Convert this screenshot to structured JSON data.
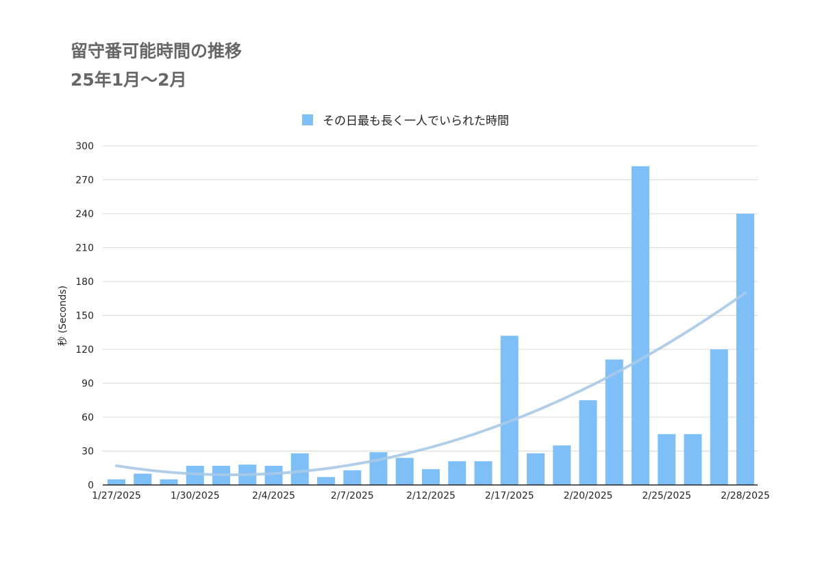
{
  "title_line1": "留守番可能時間の推移",
  "title_line2": "25年1月〜2月",
  "chart_data": {
    "type": "bar",
    "title": "留守番可能時間の推移 25年1月〜2月",
    "legend": "その日最も長く一人でいられた時間",
    "legend_position": "top",
    "xlabel": "",
    "ylabel": "秒 (Seconds)",
    "ylim": [
      0,
      300
    ],
    "yticks": [
      0,
      30,
      60,
      90,
      120,
      150,
      180,
      210,
      240,
      270,
      300
    ],
    "x_tick_labels": [
      "1/27/2025",
      "1/30/2025",
      "2/4/2025",
      "2/7/2025",
      "2/12/2025",
      "2/17/2025",
      "2/20/2025",
      "2/25/2025",
      "2/28/2025"
    ],
    "x_tick_bar_index": [
      0,
      3,
      6,
      9,
      12,
      15,
      18,
      21,
      24
    ],
    "values": [
      5,
      10,
      5,
      17,
      17,
      18,
      17,
      28,
      7,
      13,
      29,
      24,
      14,
      21,
      21,
      132,
      28,
      35,
      75,
      111,
      282,
      45,
      45,
      120,
      240
    ],
    "trendline": {
      "type": "polynomial",
      "from_value": 17,
      "to_value": 170
    },
    "colors": {
      "bar": "#7fbff7",
      "trend": "#a8c9e6",
      "grid": "#d9d9d9",
      "axis": "#222222"
    }
  }
}
